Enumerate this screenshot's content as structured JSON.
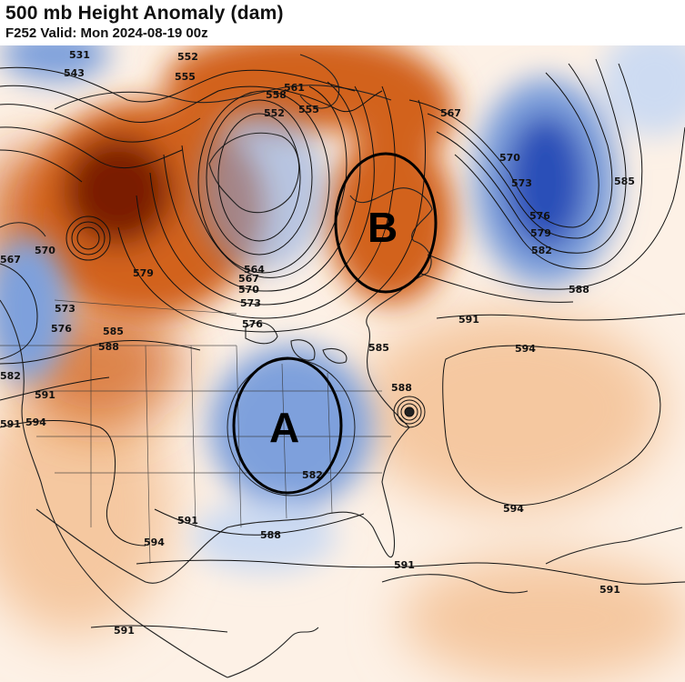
{
  "header": {
    "title": "500 mb Height Anomaly (dam)",
    "subtitle": "F252 Valid: Mon 2024-08-19 00z"
  },
  "map": {
    "colors": {
      "positive_strong": "#7a1a00",
      "positive": "#d2621e",
      "positive_light": "#f5c8a0",
      "negative_strong": "#2b4fb8",
      "negative": "#7ea0dc",
      "negative_light": "#cddbf2",
      "annotation": "#000000"
    },
    "annotations": [
      {
        "label": "A",
        "shape": "ellipse"
      },
      {
        "label": "B",
        "shape": "ellipse"
      }
    ],
    "contour_labels": [
      "531",
      "543",
      "552",
      "555",
      "561",
      "558",
      "552",
      "555",
      "567",
      "570",
      "573",
      "576",
      "579",
      "582",
      "585",
      "570",
      "567",
      "573",
      "576",
      "579",
      "585",
      "588",
      "582",
      "591",
      "594",
      "564",
      "567",
      "570",
      "573",
      "576",
      "585",
      "588",
      "591",
      "594",
      "588",
      "582",
      "591",
      "594",
      "588",
      "591",
      "591",
      "591",
      "594",
      "591",
      "591"
    ]
  }
}
